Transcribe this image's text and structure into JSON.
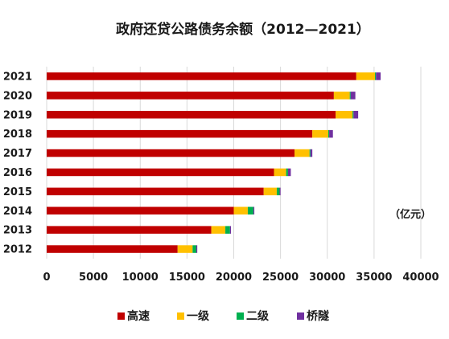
{
  "chart_data": {
    "type": "bar",
    "orientation": "horizontal",
    "stacked": true,
    "title": "政府还贷公路债务余额（2012—2021）",
    "unit_label": "（亿元）",
    "categories": [
      "2021",
      "2020",
      "2019",
      "2018",
      "2017",
      "2016",
      "2015",
      "2014",
      "2013",
      "2012"
    ],
    "series": [
      {
        "name": "高速",
        "color": "#c00000",
        "values": [
          33100,
          30700,
          30900,
          28400,
          26500,
          24300,
          23200,
          20000,
          17600,
          14000
        ]
      },
      {
        "name": "一级",
        "color": "#ffc000",
        "values": [
          2000,
          1700,
          1800,
          1700,
          1600,
          1300,
          1400,
          1500,
          1500,
          1600
        ]
      },
      {
        "name": "二级",
        "color": "#00b050",
        "values": [
          100,
          100,
          100,
          100,
          100,
          200,
          300,
          600,
          500,
          400
        ]
      },
      {
        "name": "桥隧",
        "color": "#7030a0",
        "values": [
          500,
          500,
          500,
          400,
          200,
          300,
          100,
          100,
          100,
          100
        ]
      }
    ],
    "xlim": [
      0,
      40000
    ],
    "xticks": [
      "0",
      "5000",
      "10000",
      "15000",
      "20000",
      "25000",
      "30000",
      "35000",
      "40000"
    ],
    "grid": true,
    "legend_position": "bottom"
  }
}
